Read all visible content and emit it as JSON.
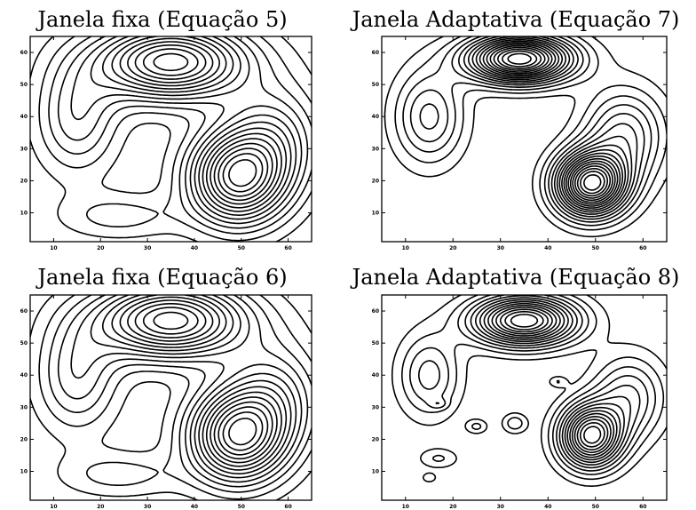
{
  "chart_data": [
    {
      "type": "contour",
      "title": "Janela fixa (Equação 5)",
      "xlim": [
        5,
        65
      ],
      "ylim": [
        1,
        65
      ],
      "xticks": [
        10,
        20,
        30,
        40,
        50,
        60
      ],
      "yticks": [
        10,
        20,
        30,
        40,
        50,
        60
      ],
      "xticklabels": [
        "10",
        "20",
        "30",
        "40",
        "50",
        "60"
      ],
      "yticklabels": [
        "10",
        "20",
        "30",
        "40",
        "50",
        "60"
      ],
      "levels": 14,
      "smoothing": 1.0,
      "components": [
        {
          "x": 35,
          "y": 57,
          "sx": 11,
          "sy": 8,
          "w": 1.0
        },
        {
          "x": 49,
          "y": 21,
          "sx": 7,
          "sy": 10,
          "w": 0.95
        },
        {
          "x": 15,
          "y": 40,
          "sx": 6,
          "sy": 12,
          "w": 0.35
        },
        {
          "x": 24,
          "y": 9,
          "sx": 9,
          "sy": 5,
          "w": 0.18
        },
        {
          "x": 57,
          "y": 33,
          "sx": 7,
          "sy": 12,
          "w": 0.4
        }
      ]
    },
    {
      "type": "contour",
      "title": "Janela Adaptativa (Equação 7)",
      "xlim": [
        5,
        65
      ],
      "ylim": [
        1,
        65
      ],
      "xticks": [
        10,
        20,
        30,
        40,
        50,
        60
      ],
      "yticks": [
        10,
        20,
        30,
        40,
        50,
        60
      ],
      "xticklabels": [
        "10",
        "20",
        "30",
        "40",
        "50",
        "60"
      ],
      "yticklabels": [
        "10",
        "20",
        "30",
        "40",
        "50",
        "60"
      ],
      "levels": 18,
      "smoothing": 0.85,
      "components": [
        {
          "x": 34,
          "y": 58,
          "sx": 9,
          "sy": 6,
          "w": 1.0
        },
        {
          "x": 49,
          "y": 19,
          "sx": 6,
          "sy": 8,
          "w": 1.0
        },
        {
          "x": 15,
          "y": 40,
          "sx": 6,
          "sy": 12,
          "w": 0.3
        },
        {
          "x": 56,
          "y": 34,
          "sx": 7,
          "sy": 12,
          "w": 0.35
        }
      ]
    },
    {
      "type": "contour",
      "title": "Janela fixa (Equação 6)",
      "xlim": [
        5,
        65
      ],
      "ylim": [
        1,
        65
      ],
      "xticks": [
        10,
        20,
        30,
        40,
        50,
        60
      ],
      "yticks": [
        10,
        20,
        30,
        40,
        50,
        60
      ],
      "xticklabels": [
        "10",
        "20",
        "30",
        "40",
        "50",
        "60"
      ],
      "yticklabels": [
        "10",
        "20",
        "30",
        "40",
        "50",
        "60"
      ],
      "levels": 14,
      "smoothing": 1.0,
      "components": [
        {
          "x": 35,
          "y": 57,
          "sx": 11,
          "sy": 8,
          "w": 1.0
        },
        {
          "x": 49,
          "y": 21,
          "sx": 7,
          "sy": 10,
          "w": 0.95
        },
        {
          "x": 15,
          "y": 40,
          "sx": 6,
          "sy": 12,
          "w": 0.35
        },
        {
          "x": 24,
          "y": 9,
          "sx": 9,
          "sy": 5,
          "w": 0.18
        },
        {
          "x": 57,
          "y": 33,
          "sx": 7,
          "sy": 12,
          "w": 0.4
        }
      ]
    },
    {
      "type": "contour",
      "title": "Janela Adaptativa (Equação 8)",
      "xlim": [
        5,
        65
      ],
      "ylim": [
        1,
        65
      ],
      "xticks": [
        10,
        20,
        30,
        40,
        50,
        60
      ],
      "yticks": [
        10,
        20,
        30,
        40,
        50,
        60
      ],
      "xticklabels": [
        "10",
        "20",
        "30",
        "40",
        "50",
        "60"
      ],
      "yticklabels": [
        "10",
        "20",
        "30",
        "40",
        "50",
        "60"
      ],
      "levels": 14,
      "smoothing": 0.75,
      "components": [
        {
          "x": 35,
          "y": 57,
          "sx": 10,
          "sy": 7,
          "w": 1.0
        },
        {
          "x": 49,
          "y": 21,
          "sx": 6,
          "sy": 9,
          "w": 0.95
        },
        {
          "x": 15,
          "y": 40,
          "sx": 6,
          "sy": 12,
          "w": 0.3
        },
        {
          "x": 57,
          "y": 33,
          "sx": 7,
          "sy": 12,
          "w": 0.35
        },
        {
          "x": 25,
          "y": 24,
          "sx": 2.2,
          "sy": 2.2,
          "w": 0.15
        },
        {
          "x": 17,
          "y": 14,
          "sx": 4,
          "sy": 3,
          "w": 0.14
        },
        {
          "x": 15,
          "y": 8,
          "sx": 1.5,
          "sy": 1.5,
          "w": 0.12
        },
        {
          "x": 33,
          "y": 25,
          "sx": 2.5,
          "sy": 3,
          "w": 0.18
        },
        {
          "x": 42,
          "y": 38,
          "sx": 1.8,
          "sy": 1.6,
          "w": 0.12
        },
        {
          "x": 17,
          "y": 31,
          "sx": 1.8,
          "sy": 1.5,
          "w": 0.1
        }
      ]
    }
  ]
}
